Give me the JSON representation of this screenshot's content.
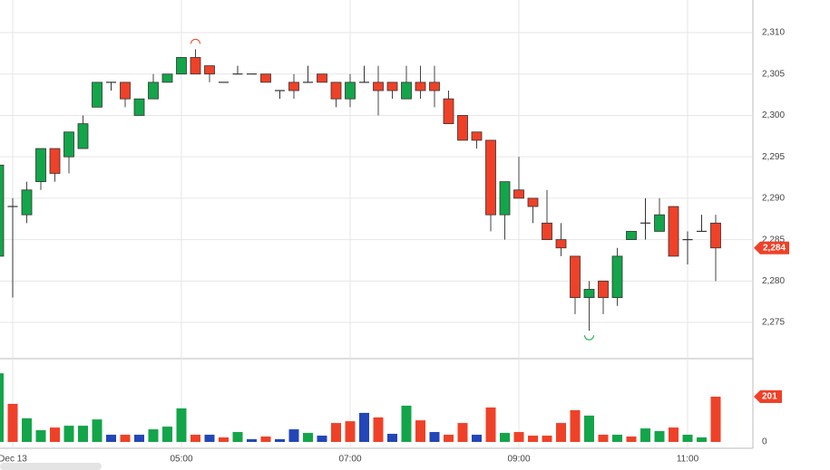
{
  "chart_data": {
    "type": "candlestick",
    "categories": [
      null,
      "Dec 13",
      null,
      null,
      null,
      null,
      null,
      null,
      null,
      null,
      null,
      null,
      null,
      "05:00",
      null,
      null,
      null,
      null,
      null,
      null,
      null,
      null,
      null,
      null,
      null,
      "07:00",
      null,
      null,
      null,
      null,
      null,
      null,
      null,
      null,
      null,
      null,
      null,
      "09:00",
      null,
      null,
      null,
      null,
      null,
      null,
      null,
      null,
      null,
      null,
      null,
      "11:00",
      null,
      null
    ],
    "open": [
      2283,
      2289,
      2288,
      2292,
      2296,
      2295,
      2296,
      2301,
      2304,
      2304,
      2300,
      2302,
      2304,
      2305,
      2307,
      2306,
      2304,
      2305,
      2305,
      2305,
      2303,
      2304,
      2304,
      2305,
      2304,
      2302,
      2304,
      2304,
      2304,
      2302,
      2304,
      2304,
      2302,
      2300,
      2298,
      2297,
      2288,
      2291,
      2290,
      2287,
      2285,
      2283,
      2278,
      2280,
      2278,
      2285,
      2287,
      2286,
      2289,
      2285,
      2286,
      2287
    ],
    "high": [
      2294,
      2290,
      2292,
      2296,
      2296,
      2298,
      2300,
      2304,
      2304,
      2304,
      2302,
      2305,
      2305,
      2307,
      2308,
      2306,
      2304,
      2306,
      2305,
      2305,
      2303,
      2305,
      2306,
      2305,
      2304,
      2305,
      2306,
      2306,
      2304,
      2306,
      2306,
      2306,
      2303,
      2300,
      2298,
      2297,
      2292,
      2295,
      2290,
      2291,
      2287,
      2283,
      2280,
      2280,
      2284,
      2286,
      2290,
      2290,
      2289,
      2286,
      2288,
      2288
    ],
    "low": [
      2283,
      2278,
      2287,
      2291,
      2292,
      2293,
      2296,
      2301,
      2303,
      2301,
      2300,
      2302,
      2304,
      2305,
      2305,
      2304,
      2304,
      2305,
      2305,
      2304,
      2302,
      2302,
      2304,
      2304,
      2301,
      2301,
      2304,
      2300,
      2302,
      2302,
      2302,
      2301,
      2299,
      2297,
      2296,
      2286,
      2285,
      2290,
      2287,
      2285,
      2283,
      2276,
      2274,
      2276,
      2277,
      2285,
      2285,
      2286,
      2283,
      2282,
      2286,
      2280
    ],
    "close": [
      2294,
      2289,
      2291,
      2296,
      2293,
      2298,
      2299,
      2304,
      2304,
      2302,
      2302,
      2304,
      2305,
      2307,
      2305,
      2305,
      2304,
      2305,
      2305,
      2304,
      2303,
      2303,
      2304,
      2304,
      2302,
      2304,
      2304,
      2303,
      2303,
      2304,
      2303,
      2303,
      2299,
      2297,
      2297,
      2288,
      2292,
      2290,
      2289,
      2285,
      2284,
      2278,
      2279,
      2278,
      2283,
      2286,
      2287,
      2288,
      2283,
      2285,
      2286,
      2284
    ],
    "up_color": "#13a54a",
    "down_color": "#ef4128",
    "doji_color": "#333333",
    "ylim": [
      2270.74,
      2313.94
    ],
    "yticks": [
      {
        "value": 2275,
        "label": "2,275"
      },
      {
        "value": 2280,
        "label": "2,280"
      },
      {
        "value": 2285,
        "label": "2,285"
      },
      {
        "value": 2290,
        "label": "2,290"
      },
      {
        "value": 2295,
        "label": "2,295"
      },
      {
        "value": 2300,
        "label": "2,300"
      },
      {
        "value": 2305,
        "label": "2,305"
      },
      {
        "value": 2310,
        "label": "2,310"
      }
    ],
    "last_price": {
      "value": 2284,
      "label": "2,284"
    },
    "grid": true,
    "volume": {
      "values": [
        305,
        169,
        105,
        52,
        64,
        72,
        72,
        100,
        32,
        32,
        32,
        56,
        68,
        149,
        32,
        32,
        20,
        44,
        12,
        24,
        12,
        56,
        40,
        28,
        84,
        92,
        129,
        109,
        36,
        161,
        96,
        44,
        32,
        84,
        32,
        153,
        40,
        44,
        28,
        28,
        84,
        141,
        117,
        32,
        32,
        24,
        60,
        48,
        64,
        32,
        20,
        201
      ],
      "colors": [
        "#13a54a",
        "#ef4128",
        "#13a54a",
        "#13a54a",
        "#ef4128",
        "#13a54a",
        "#13a54a",
        "#13a54a",
        "#2346b8",
        "#ef4128",
        "#2346b8",
        "#13a54a",
        "#13a54a",
        "#13a54a",
        "#ef4128",
        "#2346b8",
        "#ef4128",
        "#13a54a",
        "#2346b8",
        "#ef4128",
        "#2346b8",
        "#2346b8",
        "#13a54a",
        "#2346b8",
        "#ef4128",
        "#ef4128",
        "#2346b8",
        "#ef4128",
        "#2346b8",
        "#13a54a",
        "#ef4128",
        "#2346b8",
        "#ef4128",
        "#ef4128",
        "#2346b8",
        "#ef4128",
        "#13a54a",
        "#ef4128",
        "#ef4128",
        "#ef4128",
        "#ef4128",
        "#ef4128",
        "#13a54a",
        "#ef4128",
        "#13a54a",
        "#ef4128",
        "#13a54a",
        "#13a54a",
        "#ef4128",
        "#13a54a",
        "#13a54a",
        "#ef4128"
      ],
      "ylim": [
        0,
        366
      ],
      "yticks": [
        0
      ]
    }
  }
}
